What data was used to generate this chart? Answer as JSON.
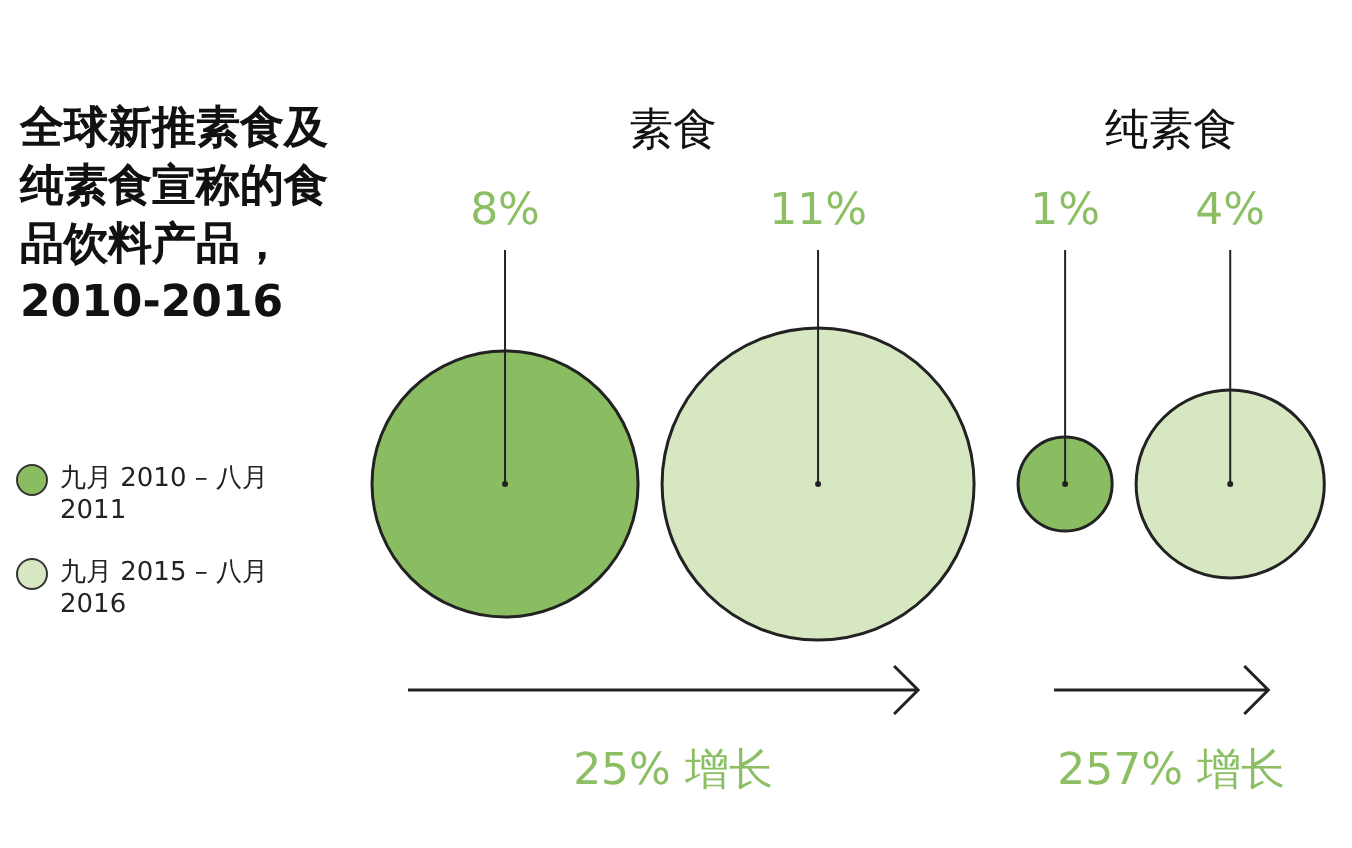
{
  "chart_data": {
    "type": "other",
    "title": "全球新推素食及纯素食宣称的食品饮料产品，2010-2016",
    "categories": [
      "素食",
      "纯素食"
    ],
    "series": [
      {
        "name": "九月 2010 – 八月 2011",
        "color": "#8abd62",
        "values": [
          8,
          1
        ],
        "value_labels": [
          "8%",
          "1%"
        ]
      },
      {
        "name": "九月 2015 – 八月 2016",
        "color": "#d7e7c2",
        "values": [
          11,
          4
        ],
        "value_labels": [
          "11%",
          "4%"
        ]
      }
    ],
    "legend": "left",
    "annotations": [
      "25% 增长",
      "257% 增长"
    ]
  }
}
